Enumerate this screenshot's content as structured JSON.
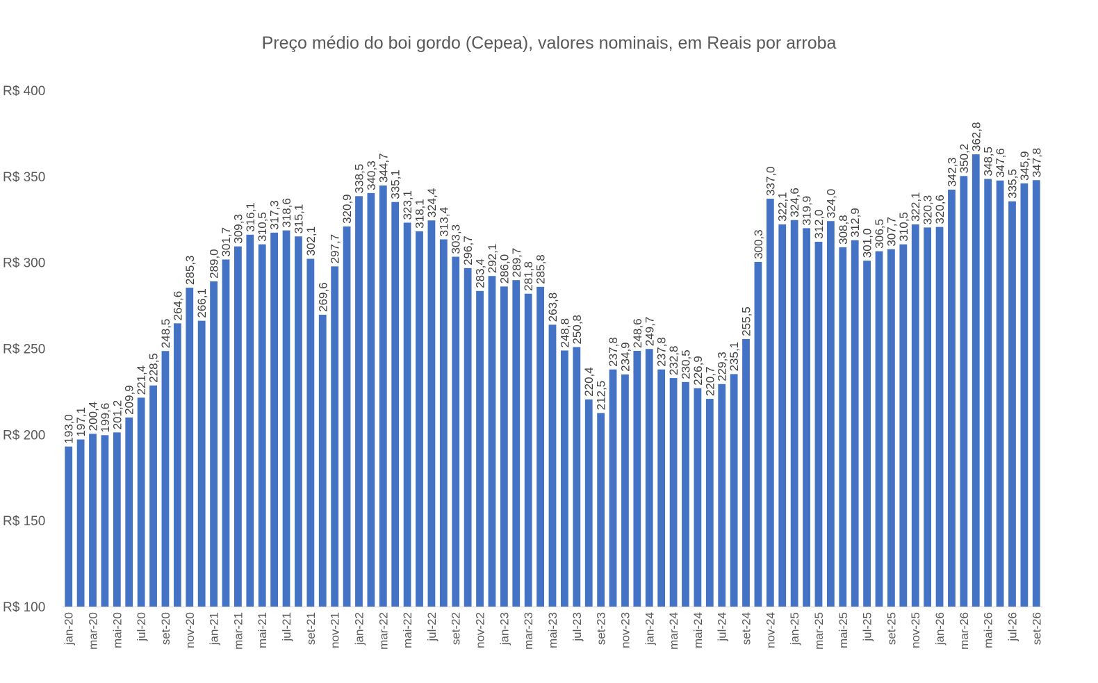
{
  "chart_data": {
    "type": "bar",
    "title": "Preço médio do boi gordo (Cepea), valores nominais, em Reais por arroba",
    "xlabel": "",
    "ylabel": "",
    "ylim": [
      100,
      400
    ],
    "yticks": [
      100,
      150,
      200,
      250,
      300,
      350,
      400
    ],
    "ytick_labels": [
      "R$ 100",
      "R$ 150",
      "R$ 200",
      "R$ 250",
      "R$ 300",
      "R$ 350",
      "R$ 400"
    ],
    "grid": false,
    "legend": "none",
    "bar_color": "#4472C4",
    "categories": [
      "jan-20",
      "fev-20",
      "mar-20",
      "abr-20",
      "mai-20",
      "jun-20",
      "jul-20",
      "ago-20",
      "set-20",
      "out-20",
      "nov-20",
      "dez-20",
      "jan-21",
      "fev-21",
      "mar-21",
      "abr-21",
      "mai-21",
      "jun-21",
      "jul-21",
      "ago-21",
      "set-21",
      "out-21",
      "nov-21",
      "dez-21",
      "jan-22",
      "fev-22",
      "mar-22",
      "abr-22",
      "mai-22",
      "jun-22",
      "jul-22",
      "ago-22",
      "set-22",
      "out-22",
      "nov-22",
      "dez-22",
      "jan-23",
      "fev-23",
      "mar-23",
      "abr-23",
      "mai-23",
      "jun-23",
      "jul-23",
      "ago-23",
      "set-23",
      "out-23",
      "nov-23",
      "dez-23",
      "jan-24",
      "fev-24",
      "mar-24",
      "abr-24",
      "mai-24",
      "jun-24",
      "jul-24",
      "ago-24",
      "set-24",
      "out-24",
      "nov-24",
      "dez-24",
      "jan-25",
      "fev-25",
      "mar-25",
      "abr-25",
      "mai-25",
      "jun-25",
      "jul-25",
      "ago-25",
      "set-25",
      "out-25",
      "nov-25",
      "dez-25",
      "jan-26",
      "fev-26",
      "mar-26",
      "abr-26",
      "mai-26",
      "jun-26",
      "jul-26",
      "ago-26",
      "set-26"
    ],
    "values": [
      193.0,
      197.1,
      200.4,
      199.6,
      201.2,
      209.9,
      221.4,
      228.5,
      248.5,
      264.6,
      285.3,
      266.1,
      289.0,
      301.7,
      309.3,
      316.1,
      310.5,
      317.3,
      318.6,
      315.1,
      302.1,
      269.6,
      297.7,
      320.9,
      338.5,
      340.3,
      344.7,
      335.1,
      323.1,
      318.1,
      324.4,
      313.4,
      303.3,
      296.7,
      283.4,
      292.1,
      286.0,
      289.7,
      281.8,
      285.8,
      263.8,
      248.8,
      250.8,
      220.4,
      212.5,
      237.8,
      234.9,
      248.6,
      249.7,
      237.8,
      232.8,
      230.5,
      226.9,
      220.7,
      229.3,
      235.1,
      255.5,
      300.3,
      337.0,
      322.1,
      324.6,
      319.9,
      312.0,
      324.0,
      308.8,
      312.9,
      301.0,
      306.5,
      307.7,
      310.5,
      322.1,
      320.3,
      320.6,
      342.3,
      350.2,
      362.8,
      348.5,
      347.6,
      335.5,
      345.9,
      347.8
    ],
    "data_labels": [
      "193,0",
      "197,1",
      "200,4",
      "199,6",
      "201,2",
      "209,9",
      "221,4",
      "228,5",
      "248,5",
      "264,6",
      "285,3",
      "266,1",
      "289,0",
      "301,7",
      "309,3",
      "316,1",
      "310,5",
      "317,3",
      "318,6",
      "315,1",
      "302,1",
      "269,6",
      "297,7",
      "320,9",
      "338,5",
      "340,3",
      "344,7",
      "335,1",
      "323,1",
      "318,1",
      "324,4",
      "313,4",
      "303,3",
      "296,7",
      "283,4",
      "292,1",
      "286,0",
      "289,7",
      "281,8",
      "285,8",
      "263,8",
      "248,8",
      "250,8",
      "220,4",
      "212,5",
      "237,8",
      "234,9",
      "248,6",
      "249,7",
      "237,8",
      "232,8",
      "230,5",
      "226,9",
      "220,7",
      "229,3",
      "235,1",
      "255,5",
      "300,3",
      "337,0",
      "322,1",
      "324,6",
      "319,9",
      "312,0",
      "324,0",
      "308,8",
      "312,9",
      "301,0",
      "306,5",
      "307,7",
      "310,5",
      "322,1",
      "320,3",
      "320,6",
      "342,3",
      "350,2",
      "362,8",
      "348,5",
      "347,6",
      "335,5",
      "345,9",
      "347,8"
    ],
    "x_label_every": 2
  }
}
